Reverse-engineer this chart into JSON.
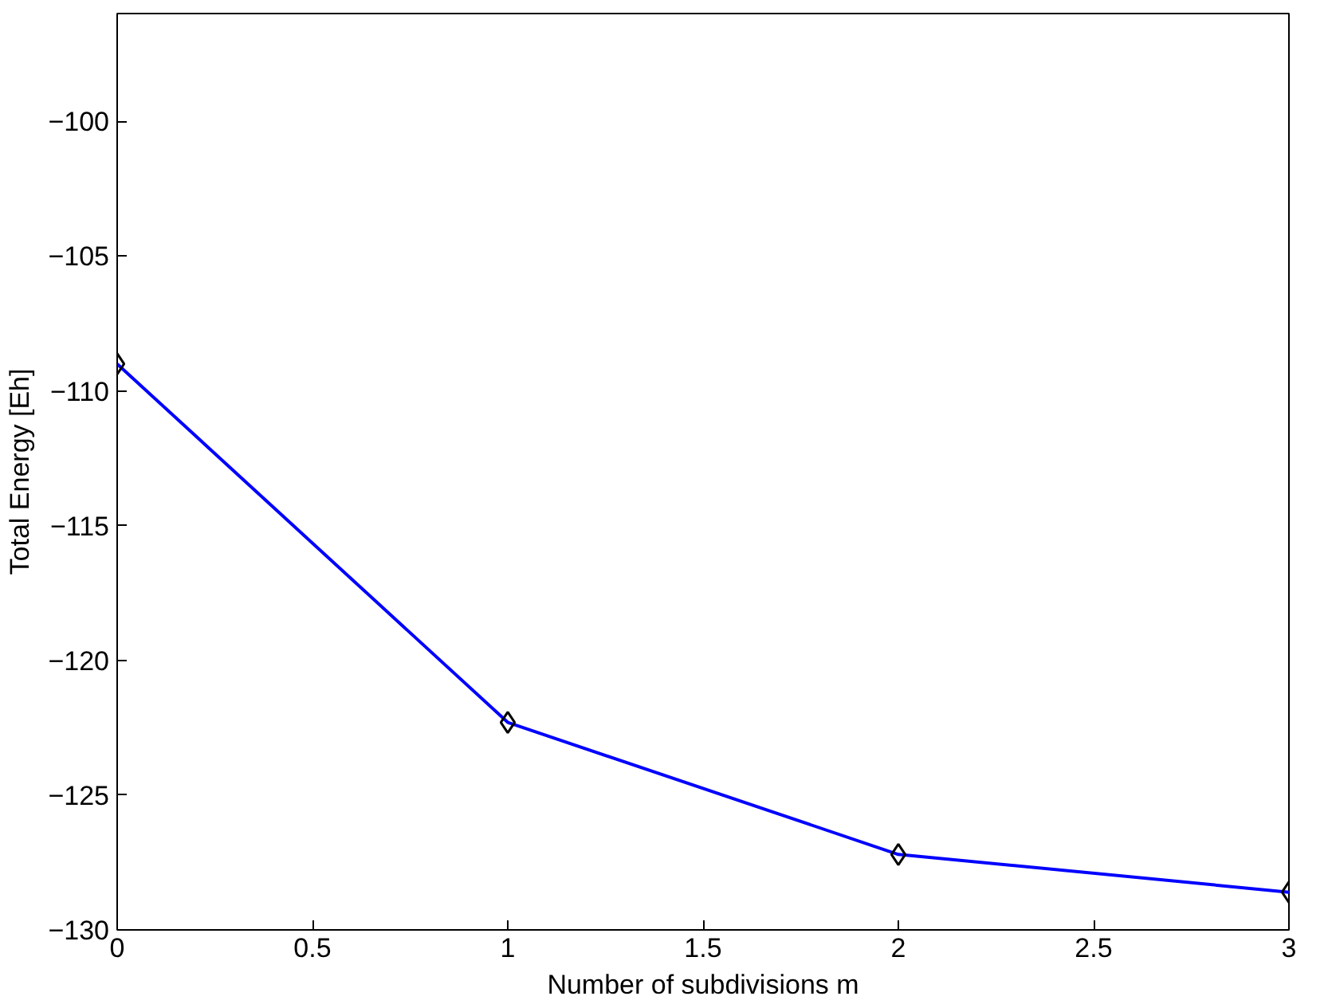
{
  "chart_data": {
    "type": "line",
    "xlabel": "Number of subdivisions m",
    "ylabel": "Total Energy [Eh]",
    "x": [
      0,
      1,
      2,
      3
    ],
    "series": [
      {
        "color": "#0000ff",
        "values": [
          -109.0,
          -122.3,
          -127.2,
          -128.6
        ]
      }
    ],
    "marker": "diamond",
    "line_style": "solid",
    "grid": false,
    "xlim": [
      0,
      3
    ],
    "ylim": [
      -130,
      -96
    ],
    "xticks": [
      0,
      0.5,
      1,
      1.5,
      2,
      2.5,
      3
    ],
    "yticks": [
      {
        "value": -130,
        "label": "−130"
      },
      {
        "value": -125,
        "label": "−125"
      },
      {
        "value": -120,
        "label": "−120"
      },
      {
        "value": -115,
        "label": "−115"
      },
      {
        "value": -110,
        "label": "−110"
      },
      {
        "value": -105,
        "label": "−105"
      },
      {
        "value": -100,
        "label": "−100"
      }
    ]
  }
}
